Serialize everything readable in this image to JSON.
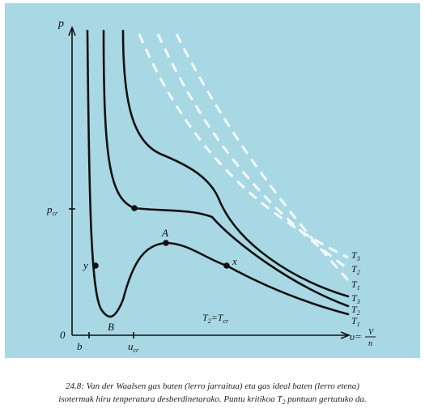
{
  "diagram": {
    "background": "#a8d8e4",
    "curve_color": "#111111",
    "dashed_color": "#ffffff",
    "axis": {
      "y_label": "p",
      "x_label_main": "υ=",
      "x_frac_num": "V",
      "x_frac_den": "n",
      "origin": "0"
    },
    "y_ticks": {
      "p_cr_main": "p",
      "p_cr_sub": "cr"
    },
    "x_ticks": {
      "b": "b",
      "u_cr_main": "u",
      "u_cr_sub": "cr"
    },
    "points": {
      "A": "A",
      "B": "B",
      "x": "x",
      "y": "y"
    },
    "annotation": {
      "main_1": "T",
      "sub_1": "2",
      "eq": "=T",
      "sub_2": "cr"
    },
    "solid_labels": [
      {
        "main": "T",
        "sub": "3"
      },
      {
        "main": "T",
        "sub": "2"
      },
      {
        "main": "T",
        "sub": "1"
      }
    ],
    "dashed_labels": [
      {
        "main": "T",
        "sub": "3"
      },
      {
        "main": "T",
        "sub": "2"
      },
      {
        "main": "T",
        "sub": "1"
      }
    ]
  },
  "caption": {
    "line1": "24.8: Van der Waalsen gas baten (lerro jarraitua) eta gas ideal baten (lerro etena)",
    "line2_pre": "isotermak hiru tenperatura desberdinetarako. Puntu kritikoa T",
    "line2_sub": "2",
    "line2_post": " puntuan gertatuko da."
  }
}
